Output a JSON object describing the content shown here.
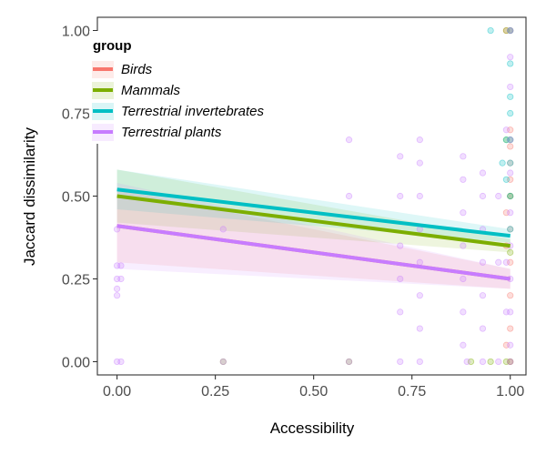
{
  "chart_data": {
    "type": "scatter",
    "xlabel": "Accessibility",
    "ylabel": "Jaccard dissimilarity",
    "xlim": [
      -0.05,
      1.04
    ],
    "ylim": [
      -0.04,
      1.04
    ],
    "x_ticks": [
      "0.00",
      "0.25",
      "0.50",
      "0.75",
      "1.00"
    ],
    "x_tick_values": [
      0,
      0.25,
      0.5,
      0.75,
      1.0
    ],
    "y_ticks": [
      "0.00",
      "0.25",
      "0.50",
      "0.75",
      "1.00"
    ],
    "y_tick_values": [
      0,
      0.25,
      0.5,
      0.75,
      1.0
    ],
    "grid": false,
    "legend": {
      "title": "group",
      "position": "top-left"
    },
    "series": [
      {
        "name": "Birds",
        "color": "#f8766d",
        "fit": {
          "x": [
            0,
            1
          ],
          "y": [
            0.41,
            0.25
          ]
        },
        "band": {
          "lower": [
            0.3,
            0.22
          ],
          "upper": [
            0.52,
            0.28
          ]
        },
        "points": [
          [
            1.0,
            0.1
          ],
          [
            1.0,
            0.2
          ],
          [
            1.0,
            0.3
          ],
          [
            1.0,
            0.4
          ],
          [
            1.0,
            0.5
          ],
          [
            1.0,
            0.55
          ],
          [
            1.0,
            0.6
          ],
          [
            1.0,
            0.65
          ],
          [
            1.0,
            0.7
          ],
          [
            0.99,
            0.45
          ],
          [
            0.99,
            0.35
          ],
          [
            0.99,
            0.05
          ],
          [
            1.0,
            0.0
          ],
          [
            1.0,
            1.0
          ],
          [
            0.99,
            1.0
          ]
        ]
      },
      {
        "name": "Mammals",
        "color": "#7cae00",
        "fit": {
          "x": [
            0,
            1
          ],
          "y": [
            0.5,
            0.35
          ]
        },
        "band": {
          "lower": [
            0.42,
            0.33
          ],
          "upper": [
            0.58,
            0.37
          ]
        },
        "points": [
          [
            1.0,
            0.0
          ],
          [
            0.99,
            0.0
          ],
          [
            1.0,
            1.0
          ],
          [
            0.99,
            1.0
          ],
          [
            1.0,
            0.5
          ],
          [
            1.0,
            0.67
          ],
          [
            0.99,
            0.67
          ],
          [
            1.0,
            0.33
          ],
          [
            0.9,
            0.0
          ],
          [
            0.95,
            0.0
          ],
          [
            0.27,
            0.0
          ],
          [
            0.59,
            0.0
          ]
        ]
      },
      {
        "name": "Terrestrial invertebrates",
        "color": "#00bfc4",
        "fit": {
          "x": [
            0,
            1
          ],
          "y": [
            0.52,
            0.38
          ]
        },
        "band": {
          "lower": [
            0.46,
            0.36
          ],
          "upper": [
            0.58,
            0.4
          ]
        },
        "points": [
          [
            0.95,
            1.0
          ],
          [
            1.0,
            1.0
          ],
          [
            1.0,
            0.9
          ],
          [
            1.0,
            0.8
          ],
          [
            1.0,
            0.75
          ],
          [
            1.0,
            0.67
          ],
          [
            0.99,
            0.67
          ],
          [
            1.0,
            0.5
          ],
          [
            1.0,
            0.6
          ],
          [
            0.99,
            0.55
          ],
          [
            1.0,
            0.4
          ],
          [
            0.98,
            0.6
          ]
        ]
      },
      {
        "name": "Terrestrial plants",
        "color": "#c77cff",
        "fit": {
          "x": [
            0,
            1
          ],
          "y": [
            0.41,
            0.25
          ]
        },
        "band": {
          "lower": [
            0.28,
            0.22
          ],
          "upper": [
            0.54,
            0.28
          ]
        },
        "points": [
          [
            0,
            0.0
          ],
          [
            0.01,
            0.0
          ],
          [
            0,
            0.2
          ],
          [
            0,
            0.22
          ],
          [
            0,
            0.25
          ],
          [
            0.01,
            0.25
          ],
          [
            0,
            0.29
          ],
          [
            0.01,
            0.29
          ],
          [
            0,
            0.4
          ],
          [
            0.27,
            0.0
          ],
          [
            0.27,
            0.4
          ],
          [
            0.59,
            0.67
          ],
          [
            0.59,
            0.5
          ],
          [
            0.59,
            0.0
          ],
          [
            0.72,
            0.15
          ],
          [
            0.72,
            0.25
          ],
          [
            0.72,
            0.35
          ],
          [
            0.72,
            0.5
          ],
          [
            0.72,
            0.62
          ],
          [
            0.72,
            0.0
          ],
          [
            0.77,
            0.1
          ],
          [
            0.77,
            0.2
          ],
          [
            0.77,
            0.3
          ],
          [
            0.77,
            0.4
          ],
          [
            0.77,
            0.5
          ],
          [
            0.77,
            0.6
          ],
          [
            0.77,
            0.67
          ],
          [
            0.77,
            0.0
          ],
          [
            0.88,
            0.05
          ],
          [
            0.88,
            0.15
          ],
          [
            0.88,
            0.25
          ],
          [
            0.88,
            0.35
          ],
          [
            0.88,
            0.45
          ],
          [
            0.88,
            0.55
          ],
          [
            0.88,
            0.62
          ],
          [
            0.89,
            0.0
          ],
          [
            0.93,
            0.1
          ],
          [
            0.93,
            0.2
          ],
          [
            0.93,
            0.3
          ],
          [
            0.93,
            0.4
          ],
          [
            0.93,
            0.5
          ],
          [
            0.93,
            0.57
          ],
          [
            0.93,
            0.0
          ],
          [
            0.97,
            0.3
          ],
          [
            0.97,
            0.5
          ],
          [
            0.97,
            0.0
          ],
          [
            1.0,
            0.05
          ],
          [
            1.0,
            0.15
          ],
          [
            1.0,
            0.25
          ],
          [
            1.0,
            0.35
          ],
          [
            1.0,
            0.45
          ],
          [
            1.0,
            0.57
          ],
          [
            1.0,
            0.67
          ],
          [
            1.0,
            0.83
          ],
          [
            1.0,
            0.92
          ],
          [
            1.0,
            0.0
          ],
          [
            1.0,
            1.0
          ],
          [
            0.99,
            0.15
          ],
          [
            0.99,
            0.3
          ],
          [
            0.99,
            0.7
          ]
        ]
      }
    ]
  }
}
